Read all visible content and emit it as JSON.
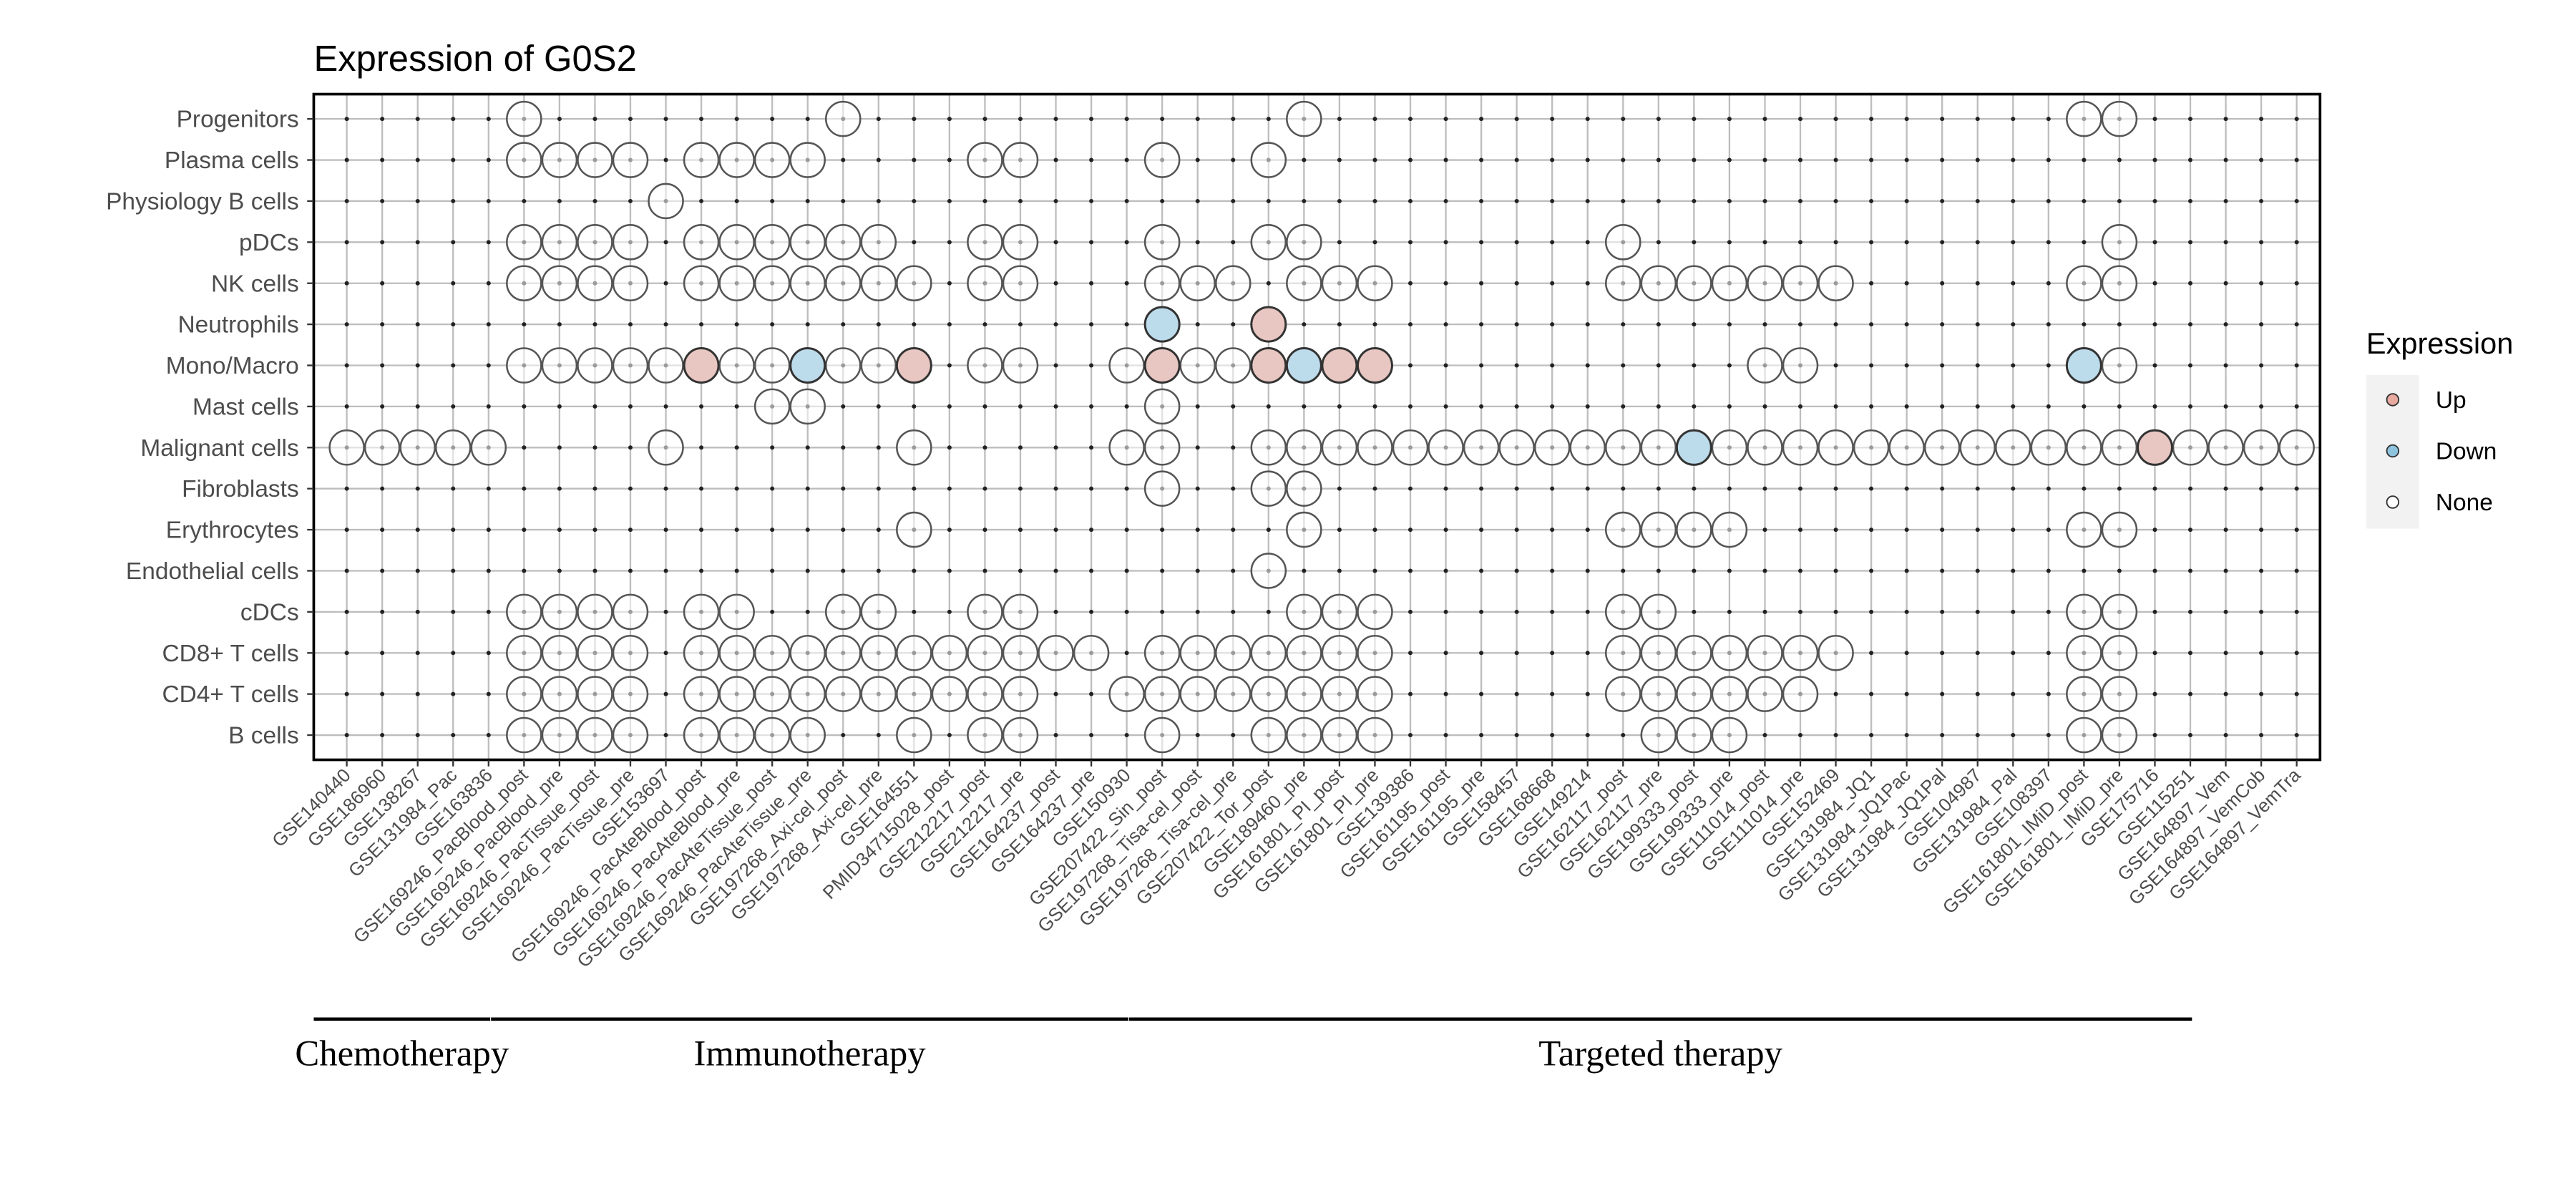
{
  "chart_data": {
    "type": "scatter",
    "title": "Expression of G0S2",
    "xlabel": "",
    "ylabel": "",
    "grid": true,
    "legend": {
      "title": "Expression",
      "placement": "right",
      "entries": [
        "Up",
        "Down",
        "None"
      ]
    },
    "colors": {
      "Up": "#e8c6c1",
      "Down": "#bcdbeb",
      "None": "#ffffff",
      "stroke": "#555555",
      "grid": "#bdbdbd"
    },
    "datasets": [
      "GSE140440",
      "GSE186960",
      "GSE138267",
      "GSE131984_Pac",
      "GSE163836",
      "GSE169246_PacBlood_post",
      "GSE169246_PacBlood_pre",
      "GSE169246_PacTissue_post",
      "GSE169246_PacTissue_pre",
      "GSE153697",
      "GSE169246_PacAteBlood_post",
      "GSE169246_PacAteBlood_pre",
      "GSE169246_PacAteTissue_post",
      "GSE169246_PacAteTissue_pre",
      "GSE197268_Axi-cel_post",
      "GSE197268_Axi-cel_pre",
      "GSE164551",
      "PMID34715028_post",
      "GSE212217_post",
      "GSE212217_pre",
      "GSE164237_post",
      "GSE164237_pre",
      "GSE150930",
      "GSE207422_Sin_post",
      "GSE197268_Tisa-cel_post",
      "GSE197268_Tisa-cel_pre",
      "GSE207422_Tor_post",
      "GSE189460_pre",
      "GSE161801_PI_post",
      "GSE161801_PI_pre",
      "GSE139386",
      "GSE161195_post",
      "GSE161195_pre",
      "GSE158457",
      "GSE168668",
      "GSE149214",
      "GSE162117_post",
      "GSE162117_pre",
      "GSE199333_post",
      "GSE199333_pre",
      "GSE111014_post",
      "GSE111014_pre",
      "GSE152469",
      "GSE131984_JQ1",
      "GSE131984_JQ1Pac",
      "GSE131984_JQ1Pal",
      "GSE104987",
      "GSE131984_Pal",
      "GSE108397",
      "GSE161801_IMiD_post",
      "GSE161801_IMiD_pre",
      "GSE175716",
      "GSE115251",
      "GSE164897_Vem",
      "GSE164897_VemCob",
      "GSE164897_VemTra"
    ],
    "cell_types": [
      {
        "name": "Progenitors",
        "None": [
          5,
          14,
          27,
          49,
          50
        ],
        "Up": [],
        "Down": []
      },
      {
        "name": "Plasma cells",
        "None": [
          5,
          6,
          7,
          8,
          10,
          11,
          12,
          13,
          18,
          19,
          23,
          26
        ],
        "Up": [],
        "Down": []
      },
      {
        "name": "Physiology B cells",
        "None": [
          9
        ],
        "Up": [],
        "Down": []
      },
      {
        "name": "pDCs",
        "None": [
          5,
          6,
          7,
          8,
          10,
          11,
          12,
          13,
          14,
          15,
          18,
          19,
          23,
          26,
          27,
          36,
          50
        ],
        "Up": [],
        "Down": []
      },
      {
        "name": "NK cells",
        "None": [
          5,
          6,
          7,
          8,
          10,
          11,
          12,
          13,
          14,
          15,
          16,
          18,
          19,
          23,
          24,
          25,
          27,
          28,
          29,
          36,
          37,
          38,
          39,
          40,
          41,
          42,
          49,
          50
        ],
        "Up": [],
        "Down": []
      },
      {
        "name": "Neutrophils",
        "None": [],
        "Up": [
          26
        ],
        "Down": [
          23
        ]
      },
      {
        "name": "Mono/Macro",
        "None": [
          5,
          6,
          7,
          8,
          9,
          11,
          12,
          14,
          15,
          18,
          19,
          22,
          24,
          25,
          40,
          41,
          50
        ],
        "Up": [
          10,
          16,
          23,
          26,
          28,
          29
        ],
        "Down": [
          13,
          27,
          49
        ]
      },
      {
        "name": "Mast cells",
        "None": [
          12,
          13,
          23
        ],
        "Up": [],
        "Down": []
      },
      {
        "name": "Malignant cells",
        "None": [
          0,
          1,
          2,
          3,
          4,
          9,
          16,
          22,
          23,
          26,
          27,
          28,
          29,
          30,
          31,
          32,
          33,
          34,
          35,
          36,
          37,
          39,
          40,
          41,
          42,
          43,
          44,
          45,
          46,
          47,
          48,
          49,
          50,
          52,
          53,
          54,
          55
        ],
        "Up": [
          51
        ],
        "Down": [
          38
        ]
      },
      {
        "name": "Fibroblasts",
        "None": [
          23,
          26,
          27
        ],
        "Up": [],
        "Down": []
      },
      {
        "name": "Erythrocytes",
        "None": [
          16,
          27,
          36,
          37,
          38,
          39,
          49,
          50
        ],
        "Up": [],
        "Down": []
      },
      {
        "name": "Endothelial cells",
        "None": [
          26
        ],
        "Up": [],
        "Down": []
      },
      {
        "name": "cDCs",
        "None": [
          5,
          6,
          7,
          8,
          10,
          11,
          14,
          15,
          18,
          19,
          27,
          28,
          29,
          36,
          37,
          49,
          50
        ],
        "Up": [],
        "Down": []
      },
      {
        "name": "CD8+ T cells",
        "None": [
          5,
          6,
          7,
          8,
          10,
          11,
          12,
          13,
          14,
          15,
          16,
          17,
          18,
          19,
          20,
          21,
          23,
          24,
          25,
          26,
          27,
          28,
          29,
          36,
          37,
          38,
          39,
          40,
          41,
          42,
          49,
          50
        ],
        "Up": [],
        "Down": []
      },
      {
        "name": "CD4+ T cells",
        "None": [
          5,
          6,
          7,
          8,
          10,
          11,
          12,
          13,
          14,
          15,
          16,
          17,
          18,
          19,
          22,
          23,
          24,
          25,
          26,
          27,
          28,
          29,
          36,
          37,
          38,
          39,
          40,
          41,
          49,
          50
        ],
        "Up": [],
        "Down": []
      },
      {
        "name": "B cells",
        "None": [
          5,
          6,
          7,
          8,
          10,
          11,
          12,
          13,
          16,
          18,
          19,
          23,
          26,
          27,
          28,
          29,
          37,
          38,
          39,
          49,
          50
        ],
        "Up": [],
        "Down": []
      }
    ],
    "groups": [
      {
        "label": "Chemotherapy",
        "first": 0,
        "last": 4
      },
      {
        "label": "Immunotherapy",
        "first": 5,
        "last": 22
      },
      {
        "label": "Targeted therapy",
        "first": 23,
        "last": 52
      }
    ]
  }
}
